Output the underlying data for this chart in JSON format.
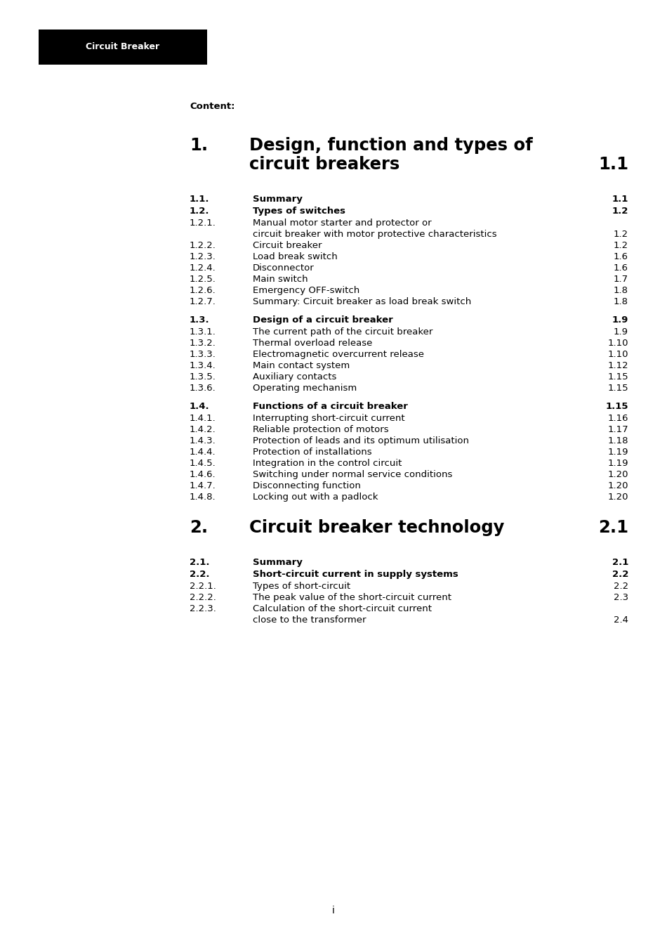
{
  "header_label": "Circuit Breaker",
  "header_bg": "#000000",
  "header_text_color": "#ffffff",
  "content_label": "Content:",
  "page_bg": "#ffffff",
  "text_color": "#000000",
  "footer_text": "i",
  "sections": [
    {
      "number": "1.",
      "title": "Design, function and types of\ncircuit breakers",
      "page": "1.1",
      "level": "chapter",
      "bold": true,
      "gap_before": false
    },
    {
      "number": "1.1.",
      "title": "Summary",
      "page": "1.1",
      "level": "section",
      "bold": true,
      "gap_before": true
    },
    {
      "number": "1.2.",
      "title": "Types of switches",
      "page": "1.2",
      "level": "section",
      "bold": true,
      "gap_before": false
    },
    {
      "number": "1.2.1.",
      "title": "Manual motor starter and protector or\ncircuit breaker with motor protective characteristics",
      "page": "1.2",
      "level": "subsection",
      "bold": false,
      "gap_before": false
    },
    {
      "number": "1.2.2.",
      "title": "Circuit breaker",
      "page": "1.2",
      "level": "subsection",
      "bold": false,
      "gap_before": false
    },
    {
      "number": "1.2.3.",
      "title": "Load break switch",
      "page": "1.6",
      "level": "subsection",
      "bold": false,
      "gap_before": false
    },
    {
      "number": "1.2.4.",
      "title": "Disconnector",
      "page": "1.6",
      "level": "subsection",
      "bold": false,
      "gap_before": false
    },
    {
      "number": "1.2.5.",
      "title": "Main switch",
      "page": "1.7",
      "level": "subsection",
      "bold": false,
      "gap_before": false
    },
    {
      "number": "1.2.6.",
      "title": "Emergency OFF-switch",
      "page": "1.8",
      "level": "subsection",
      "bold": false,
      "gap_before": false
    },
    {
      "number": "1.2.7.",
      "title": "Summary: Circuit breaker as load break switch",
      "page": "1.8",
      "level": "subsection",
      "bold": false,
      "gap_before": false
    },
    {
      "number": "1.3.",
      "title": "Design of a circuit breaker",
      "page": "1.9",
      "level": "section",
      "bold": true,
      "gap_before": true
    },
    {
      "number": "1.3.1.",
      "title": "The current path of the circuit breaker",
      "page": "1.9",
      "level": "subsection",
      "bold": false,
      "gap_before": false
    },
    {
      "number": "1.3.2.",
      "title": "Thermal overload release",
      "page": "1.10",
      "level": "subsection",
      "bold": false,
      "gap_before": false
    },
    {
      "number": "1.3.3.",
      "title": "Electromagnetic overcurrent release",
      "page": "1.10",
      "level": "subsection",
      "bold": false,
      "gap_before": false
    },
    {
      "number": "1.3.4.",
      "title": "Main contact system",
      "page": "1.12",
      "level": "subsection",
      "bold": false,
      "gap_before": false
    },
    {
      "number": "1.3.5.",
      "title": "Auxiliary contacts",
      "page": "1.15",
      "level": "subsection",
      "bold": false,
      "gap_before": false
    },
    {
      "number": "1.3.6.",
      "title": "Operating mechanism",
      "page": "1.15",
      "level": "subsection",
      "bold": false,
      "gap_before": false
    },
    {
      "number": "1.4.",
      "title": "Functions of a circuit breaker",
      "page": "1.15",
      "level": "section",
      "bold": true,
      "gap_before": true
    },
    {
      "number": "1.4.1.",
      "title": "Interrupting short-circuit current",
      "page": "1.16",
      "level": "subsection",
      "bold": false,
      "gap_before": false
    },
    {
      "number": "1.4.2.",
      "title": "Reliable protection of motors",
      "page": "1.17",
      "level": "subsection",
      "bold": false,
      "gap_before": false
    },
    {
      "number": "1.4.3.",
      "title": "Protection of leads and its optimum utilisation",
      "page": "1.18",
      "level": "subsection",
      "bold": false,
      "gap_before": false
    },
    {
      "number": "1.4.4.",
      "title": "Protection of installations",
      "page": "1.19",
      "level": "subsection",
      "bold": false,
      "gap_before": false
    },
    {
      "number": "1.4.5.",
      "title": "Integration in the control circuit",
      "page": "1.19",
      "level": "subsection",
      "bold": false,
      "gap_before": false
    },
    {
      "number": "1.4.6.",
      "title": "Switching under normal service conditions",
      "page": "1.20",
      "level": "subsection",
      "bold": false,
      "gap_before": false
    },
    {
      "number": "1.4.7.",
      "title": "Disconnecting function",
      "page": "1.20",
      "level": "subsection",
      "bold": false,
      "gap_before": false
    },
    {
      "number": "1.4.8.",
      "title": "Locking out with a padlock",
      "page": "1.20",
      "level": "subsection",
      "bold": false,
      "gap_before": false
    },
    {
      "number": "2.",
      "title": "Circuit breaker technology",
      "page": "2.1",
      "level": "chapter",
      "bold": true,
      "gap_before": true
    },
    {
      "number": "2.1.",
      "title": "Summary",
      "page": "2.1",
      "level": "section",
      "bold": true,
      "gap_before": true
    },
    {
      "number": "2.2.",
      "title": "Short-circuit current in supply systems",
      "page": "2.2",
      "level": "section",
      "bold": true,
      "gap_before": false
    },
    {
      "number": "2.2.1.",
      "title": "Types of short-circuit",
      "page": "2.2",
      "level": "subsection",
      "bold": false,
      "gap_before": false
    },
    {
      "number": "2.2.2.",
      "title": "The peak value of the short-circuit current",
      "page": "2.3",
      "level": "subsection",
      "bold": false,
      "gap_before": false
    },
    {
      "number": "2.2.3.",
      "title": "Calculation of the short-circuit current\nclose to the transformer",
      "page": "2.4",
      "level": "subsection",
      "bold": false,
      "gap_before": false
    }
  ]
}
